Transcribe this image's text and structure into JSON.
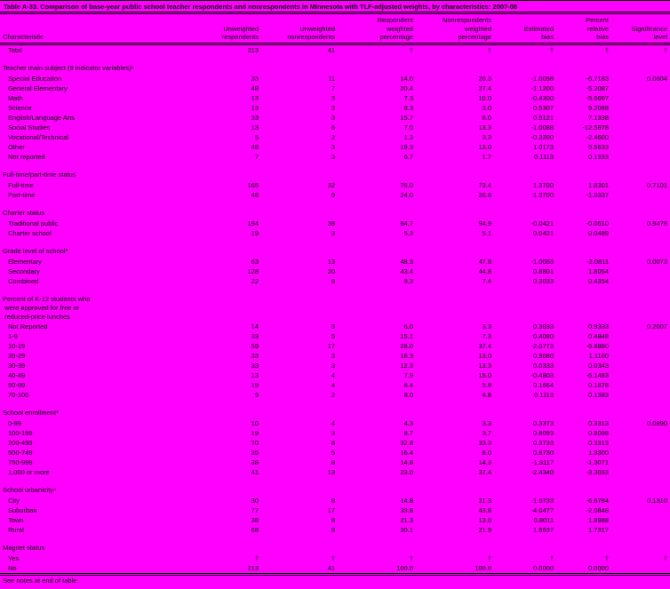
{
  "page": {
    "background_color": "#FF00FF",
    "title": "Table A-33. Comparison of base-year public school teacher respondents and nonrespondents in Minnesota with TLF-adjusted weights, by characteristics: 2007-08",
    "footnote": "See notes at end of table.",
    "dagger_symbol": "†"
  },
  "table": {
    "columns": [
      "Characteristic",
      "Unweighted\nrespondents",
      "Unweighted\nnonrespondents",
      "Respondent\nweighted\npercentage",
      "Nonrespondents\nweighted\npercentage",
      "Estimated\nbias",
      "Percent\nrelative\nbias",
      "Significance\nlevel"
    ],
    "rows": [
      {
        "kind": "data",
        "label": "Total",
        "values": [
          "213",
          "41",
          "†",
          "†",
          "†",
          "†",
          "†"
        ]
      },
      {
        "kind": "gap"
      },
      {
        "kind": "section",
        "label": "Teacher main subject (9 indicator variables)¹"
      },
      {
        "kind": "data",
        "label": "Special Education",
        "values": [
          "33",
          "11",
          "14.0",
          "20.3",
          "-1.0098",
          "-6.7183",
          "0.0604"
        ]
      },
      {
        "kind": "data",
        "label": "General Elementary",
        "values": [
          "48",
          "7",
          "20.4",
          "27.4",
          "-1.1200",
          "-5.2087",
          ""
        ]
      },
      {
        "kind": "data",
        "label": "Math",
        "values": [
          "13",
          "3",
          "7.3",
          "10.0",
          "-0.4300",
          "-5.5667",
          ""
        ]
      },
      {
        "kind": "data",
        "label": "Science",
        "values": [
          "13",
          "3",
          "8.3",
          "3.0",
          "0.5307",
          "9.2088",
          ""
        ]
      },
      {
        "kind": "data",
        "label": "English/Language Arts",
        "values": [
          "33",
          "3",
          "15.7",
          "8.0",
          "0.9121",
          "7.1338",
          ""
        ]
      },
      {
        "kind": "data",
        "label": "Social Studies",
        "values": [
          "13",
          "6",
          "7.0",
          "13.3",
          "-1.0088",
          "-12.5978",
          ""
        ]
      },
      {
        "kind": "data",
        "label": "Vocational/Technical",
        "values": [
          "5",
          "2",
          "1.3",
          "3.3",
          "-0.3200",
          "-2.4600",
          ""
        ]
      },
      {
        "kind": "data",
        "label": "Other",
        "values": [
          "48",
          "3",
          "19.3",
          "13.0",
          "1.0173",
          "5.5633",
          ""
        ]
      },
      {
        "kind": "data",
        "label": "Not reported",
        "values": [
          "7",
          "3",
          "6.7",
          "1.7",
          "0.1113",
          "0.1333",
          ""
        ]
      },
      {
        "kind": "gap"
      },
      {
        "kind": "section",
        "label": "Full-time/part-time status"
      },
      {
        "kind": "data",
        "label": "Full-time",
        "values": [
          "165",
          "32",
          "76.0",
          "73.4",
          "1.3700",
          "1.8301",
          "0.7101"
        ]
      },
      {
        "kind": "data",
        "label": "Part-time",
        "values": [
          "48",
          "9",
          "24.0",
          "26.6",
          "-1.3700",
          "-1.0337",
          ""
        ]
      },
      {
        "kind": "gap"
      },
      {
        "kind": "section",
        "label": "Charter status"
      },
      {
        "kind": "data",
        "label": "Traditional public",
        "values": [
          "194",
          "38",
          "94.7",
          "94.9",
          "-0.0421",
          "-0.0510",
          "0.9478"
        ]
      },
      {
        "kind": "data",
        "label": "Charter school",
        "values": [
          "19",
          "3",
          "5.3",
          "5.1",
          "0.0421",
          "0.0489",
          ""
        ]
      },
      {
        "kind": "gap"
      },
      {
        "kind": "section",
        "label": "Grade level of school²"
      },
      {
        "kind": "data",
        "label": "Elementary",
        "values": [
          "63",
          "13",
          "48.3",
          "47.8",
          "-1.0063",
          "-2.0811",
          "0.0073"
        ]
      },
      {
        "kind": "data",
        "label": "Secondary",
        "values": [
          "128",
          "20",
          "43.4",
          "44.8",
          "0.8801",
          "1.8054",
          ""
        ]
      },
      {
        "kind": "data",
        "label": "Combined",
        "values": [
          "22",
          "8",
          "8.3",
          "7.4",
          "0.3033",
          "0.4354",
          ""
        ]
      },
      {
        "kind": "gap"
      },
      {
        "kind": "section",
        "label": "Percent of K-12 students who\n were approved for free or\n reduced-price lunches"
      },
      {
        "kind": "data",
        "label": "Not Reported",
        "values": [
          "14",
          "3",
          "6.0",
          "3.3",
          "0.3033",
          "0.9333",
          "0.2007"
        ]
      },
      {
        "kind": "data",
        "label": "1-9",
        "values": [
          "33",
          "5",
          "15.1",
          "7.3",
          "0.4080",
          "0.4848",
          ""
        ]
      },
      {
        "kind": "data",
        "label": "10-19",
        "values": [
          "59",
          "17",
          "28.0",
          "37.4",
          "-2.0773",
          "-6.8880",
          ""
        ]
      },
      {
        "kind": "data",
        "label": "20-29",
        "values": [
          "33",
          "3",
          "16.3",
          "13.0",
          "0.9080",
          "1.1100",
          ""
        ]
      },
      {
        "kind": "data",
        "label": "30-39",
        "values": [
          "33",
          "3",
          "12.3",
          "13.3",
          "0.0333",
          "0.0343",
          ""
        ]
      },
      {
        "kind": "data",
        "label": "40-49",
        "values": [
          "13",
          "4",
          "7.9",
          "15.0",
          "-0.4803",
          "-6.1483",
          ""
        ]
      },
      {
        "kind": "data",
        "label": "50-69",
        "values": [
          "19",
          "4",
          "6.4",
          "5.9",
          "0.1664",
          "0.1878",
          ""
        ]
      },
      {
        "kind": "data",
        "label": "70-100",
        "values": [
          "9",
          "2",
          "8.0",
          "4.8",
          "0.1113",
          "0.1383",
          ""
        ]
      },
      {
        "kind": "gap"
      },
      {
        "kind": "section",
        "label": "School enrollment³"
      },
      {
        "kind": "data",
        "label": "0-99",
        "values": [
          "10",
          "4",
          "4.3",
          "3.3",
          "0.3373",
          "0.3313",
          "0.0890"
        ]
      },
      {
        "kind": "data",
        "label": "100-199",
        "values": [
          "19",
          "3",
          "8.7",
          "3.7",
          "0.8093",
          "0.8098",
          ""
        ]
      },
      {
        "kind": "data",
        "label": "200-499",
        "values": [
          "70",
          "8",
          "32.8",
          "33.3",
          "0.3733",
          "0.3313",
          ""
        ]
      },
      {
        "kind": "data",
        "label": "500-749",
        "values": [
          "35",
          "5",
          "16.4",
          "8.0",
          "0.8730",
          "1.3300",
          ""
        ]
      },
      {
        "kind": "data",
        "label": "750-999",
        "values": [
          "38",
          "8",
          "14.8",
          "14.3",
          "-1.3117",
          "-1.3071",
          ""
        ]
      },
      {
        "kind": "data",
        "label": "1,000 or more",
        "values": [
          "41",
          "13",
          "23.0",
          "37.4",
          "-2.4340",
          "-3.3033",
          ""
        ]
      },
      {
        "kind": "gap"
      },
      {
        "kind": "section",
        "label": "School urbanicity⁴"
      },
      {
        "kind": "data",
        "label": "City",
        "values": [
          "30",
          "8",
          "14.8",
          "21.3",
          "-1.0733",
          "-6.6784",
          "0.1310"
        ]
      },
      {
        "kind": "data",
        "label": "Suburban",
        "values": [
          "77",
          "17",
          "33.8",
          "43.8",
          "-4.0477",
          "-2.0848",
          ""
        ]
      },
      {
        "kind": "data",
        "label": "Town",
        "values": [
          "38",
          "8",
          "21.3",
          "13.0",
          "0.8011",
          "1.8988",
          ""
        ]
      },
      {
        "kind": "data",
        "label": "Rural",
        "values": [
          "68",
          "8",
          "30.1",
          "21.9",
          "1.6637",
          "1.7317",
          ""
        ]
      },
      {
        "kind": "gap"
      },
      {
        "kind": "section",
        "label": "Magnet status"
      },
      {
        "kind": "data",
        "label": "Yes",
        "values": [
          "†",
          "†",
          "†",
          "†",
          "†",
          "†",
          "†"
        ]
      },
      {
        "kind": "data",
        "label": "No",
        "values": [
          "213",
          "41",
          "100.0",
          "100.0",
          "0.0000",
          "0.0000",
          ""
        ]
      }
    ]
  }
}
